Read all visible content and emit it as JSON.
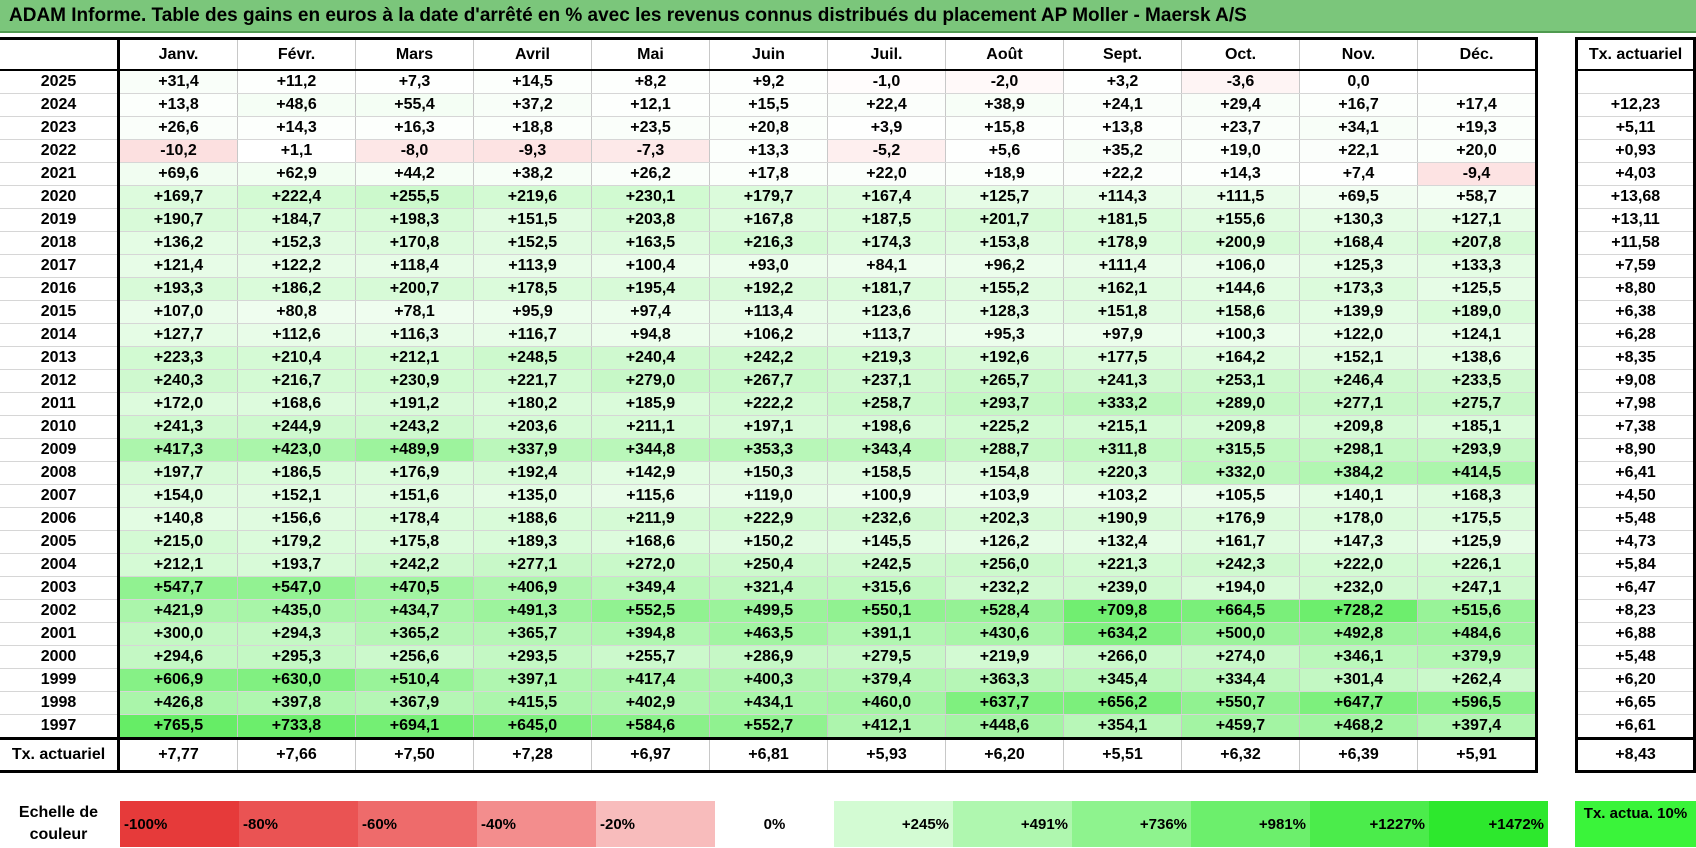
{
  "title": "ADAM Informe. Table des gains en euros à la date d'arrêté en % avec les revenus connus distribués du placement AP Moller - Maersk A/S",
  "colors": {
    "title_bar": "#7bc67b",
    "negative": "#e63a3a",
    "positive": "#2de82d",
    "target": "#3af43a"
  },
  "chart_data": {
    "type": "table",
    "months": [
      "Janv.",
      "Févr.",
      "Mars",
      "Avril",
      "Mai",
      "Juin",
      "Juil.",
      "Août",
      "Sept.",
      "Oct.",
      "Nov.",
      "Déc."
    ],
    "actuarial_header": "Tx. actuariel",
    "rows": [
      {
        "year": "2025",
        "values": [
          "+31,4",
          "+11,2",
          "+7,3",
          "+14,5",
          "+8,2",
          "+9,2",
          "-1,0",
          "-2,0",
          "+3,2",
          "-3,6",
          "0,0",
          ""
        ],
        "rate": ""
      },
      {
        "year": "2024",
        "values": [
          "+13,8",
          "+48,6",
          "+55,4",
          "+37,2",
          "+12,1",
          "+15,5",
          "+22,4",
          "+38,9",
          "+24,1",
          "+29,4",
          "+16,7",
          "+17,4"
        ],
        "rate": "+12,23"
      },
      {
        "year": "2023",
        "values": [
          "+26,6",
          "+14,3",
          "+16,3",
          "+18,8",
          "+23,5",
          "+20,8",
          "+3,9",
          "+15,8",
          "+13,8",
          "+23,7",
          "+34,1",
          "+19,3"
        ],
        "rate": "+5,11"
      },
      {
        "year": "2022",
        "values": [
          "-10,2",
          "+1,1",
          "-8,0",
          "-9,3",
          "-7,3",
          "+13,3",
          "-5,2",
          "+5,6",
          "+35,2",
          "+19,0",
          "+22,1",
          "+20,0"
        ],
        "rate": "+0,93"
      },
      {
        "year": "2021",
        "values": [
          "+69,6",
          "+62,9",
          "+44,2",
          "+38,2",
          "+26,2",
          "+17,8",
          "+22,0",
          "+18,9",
          "+22,2",
          "+14,3",
          "+7,4",
          "-9,4"
        ],
        "rate": "+4,03"
      },
      {
        "year": "2020",
        "values": [
          "+169,7",
          "+222,4",
          "+255,5",
          "+219,6",
          "+230,1",
          "+179,7",
          "+167,4",
          "+125,7",
          "+114,3",
          "+111,5",
          "+69,5",
          "+58,7"
        ],
        "rate": "+13,68"
      },
      {
        "year": "2019",
        "values": [
          "+190,7",
          "+184,7",
          "+198,3",
          "+151,5",
          "+203,8",
          "+167,8",
          "+187,5",
          "+201,7",
          "+181,5",
          "+155,6",
          "+130,3",
          "+127,1"
        ],
        "rate": "+13,11"
      },
      {
        "year": "2018",
        "values": [
          "+136,2",
          "+152,3",
          "+170,8",
          "+152,5",
          "+163,5",
          "+216,3",
          "+174,3",
          "+153,8",
          "+178,9",
          "+200,9",
          "+168,4",
          "+207,8"
        ],
        "rate": "+11,58"
      },
      {
        "year": "2017",
        "values": [
          "+121,4",
          "+122,2",
          "+118,4",
          "+113,9",
          "+100,4",
          "+93,0",
          "+84,1",
          "+96,2",
          "+111,4",
          "+106,0",
          "+125,3",
          "+133,3"
        ],
        "rate": "+7,59"
      },
      {
        "year": "2016",
        "values": [
          "+193,3",
          "+186,2",
          "+200,7",
          "+178,5",
          "+195,4",
          "+192,2",
          "+181,7",
          "+155,2",
          "+162,1",
          "+144,6",
          "+173,3",
          "+125,5"
        ],
        "rate": "+8,80"
      },
      {
        "year": "2015",
        "values": [
          "+107,0",
          "+80,8",
          "+78,1",
          "+95,9",
          "+97,4",
          "+113,4",
          "+123,6",
          "+128,3",
          "+151,8",
          "+158,6",
          "+139,9",
          "+189,0"
        ],
        "rate": "+6,38"
      },
      {
        "year": "2014",
        "values": [
          "+127,7",
          "+112,6",
          "+116,3",
          "+116,7",
          "+94,8",
          "+106,2",
          "+113,7",
          "+95,3",
          "+97,9",
          "+100,3",
          "+122,0",
          "+124,1"
        ],
        "rate": "+6,28"
      },
      {
        "year": "2013",
        "values": [
          "+223,3",
          "+210,4",
          "+212,1",
          "+248,5",
          "+240,4",
          "+242,2",
          "+219,3",
          "+192,6",
          "+177,5",
          "+164,2",
          "+152,1",
          "+138,6"
        ],
        "rate": "+8,35"
      },
      {
        "year": "2012",
        "values": [
          "+240,3",
          "+216,7",
          "+230,9",
          "+221,7",
          "+279,0",
          "+267,7",
          "+237,1",
          "+265,7",
          "+241,3",
          "+253,1",
          "+246,4",
          "+233,5"
        ],
        "rate": "+9,08"
      },
      {
        "year": "2011",
        "values": [
          "+172,0",
          "+168,6",
          "+191,2",
          "+180,2",
          "+185,9",
          "+222,2",
          "+258,7",
          "+293,7",
          "+333,2",
          "+289,0",
          "+277,1",
          "+275,7"
        ],
        "rate": "+7,98"
      },
      {
        "year": "2010",
        "values": [
          "+241,3",
          "+244,9",
          "+243,2",
          "+203,6",
          "+211,1",
          "+197,1",
          "+198,6",
          "+225,2",
          "+215,1",
          "+209,8",
          "+209,8",
          "+185,1"
        ],
        "rate": "+7,38"
      },
      {
        "year": "2009",
        "values": [
          "+417,3",
          "+423,0",
          "+489,9",
          "+337,9",
          "+344,8",
          "+353,3",
          "+343,4",
          "+288,7",
          "+311,8",
          "+315,5",
          "+298,1",
          "+293,9"
        ],
        "rate": "+8,90"
      },
      {
        "year": "2008",
        "values": [
          "+197,7",
          "+186,5",
          "+176,9",
          "+192,4",
          "+142,9",
          "+150,3",
          "+158,5",
          "+154,8",
          "+220,3",
          "+332,0",
          "+384,2",
          "+414,5"
        ],
        "rate": "+6,41"
      },
      {
        "year": "2007",
        "values": [
          "+154,0",
          "+152,1",
          "+151,6",
          "+135,0",
          "+115,6",
          "+119,0",
          "+100,9",
          "+103,9",
          "+103,2",
          "+105,5",
          "+140,1",
          "+168,3"
        ],
        "rate": "+4,50"
      },
      {
        "year": "2006",
        "values": [
          "+140,8",
          "+156,6",
          "+178,4",
          "+188,6",
          "+211,9",
          "+222,9",
          "+232,6",
          "+202,3",
          "+190,9",
          "+176,9",
          "+178,0",
          "+175,5"
        ],
        "rate": "+5,48"
      },
      {
        "year": "2005",
        "values": [
          "+215,0",
          "+179,2",
          "+175,8",
          "+189,3",
          "+168,6",
          "+150,2",
          "+145,5",
          "+126,2",
          "+132,4",
          "+161,7",
          "+147,3",
          "+125,9"
        ],
        "rate": "+4,73"
      },
      {
        "year": "2004",
        "values": [
          "+212,1",
          "+193,7",
          "+242,2",
          "+277,1",
          "+272,0",
          "+250,4",
          "+242,5",
          "+256,0",
          "+221,3",
          "+242,3",
          "+222,0",
          "+226,1"
        ],
        "rate": "+5,84"
      },
      {
        "year": "2003",
        "values": [
          "+547,7",
          "+547,0",
          "+470,5",
          "+406,9",
          "+349,4",
          "+321,4",
          "+315,6",
          "+232,2",
          "+239,0",
          "+194,0",
          "+232,0",
          "+247,1"
        ],
        "rate": "+6,47"
      },
      {
        "year": "2002",
        "values": [
          "+421,9",
          "+435,0",
          "+434,7",
          "+491,3",
          "+552,5",
          "+499,5",
          "+550,1",
          "+528,4",
          "+709,8",
          "+664,5",
          "+728,2",
          "+515,6"
        ],
        "rate": "+8,23"
      },
      {
        "year": "2001",
        "values": [
          "+300,0",
          "+294,3",
          "+365,2",
          "+365,7",
          "+394,8",
          "+463,5",
          "+391,1",
          "+430,6",
          "+634,2",
          "+500,0",
          "+492,8",
          "+484,6"
        ],
        "rate": "+6,88"
      },
      {
        "year": "2000",
        "values": [
          "+294,6",
          "+295,3",
          "+256,6",
          "+293,5",
          "+255,7",
          "+286,9",
          "+279,5",
          "+219,9",
          "+266,0",
          "+274,0",
          "+346,1",
          "+379,9"
        ],
        "rate": "+5,48"
      },
      {
        "year": "1999",
        "values": [
          "+606,9",
          "+630,0",
          "+510,4",
          "+397,1",
          "+417,4",
          "+400,3",
          "+379,4",
          "+363,3",
          "+345,4",
          "+334,4",
          "+301,4",
          "+262,4"
        ],
        "rate": "+6,20"
      },
      {
        "year": "1998",
        "values": [
          "+426,8",
          "+397,8",
          "+367,9",
          "+415,5",
          "+402,9",
          "+434,1",
          "+460,0",
          "+637,7",
          "+656,2",
          "+550,7",
          "+647,7",
          "+596,5"
        ],
        "rate": "+6,65"
      },
      {
        "year": "1997",
        "values": [
          "+765,5",
          "+733,8",
          "+694,1",
          "+645,0",
          "+584,6",
          "+552,7",
          "+412,1",
          "+448,6",
          "+354,1",
          "+459,7",
          "+468,2",
          "+397,4"
        ],
        "rate": "+6,61"
      }
    ],
    "totals": {
      "label": "Tx. actuariel",
      "values": [
        "+7,77",
        "+7,66",
        "+7,50",
        "+7,28",
        "+6,97",
        "+6,81",
        "+5,93",
        "+6,20",
        "+5,51",
        "+6,32",
        "+6,39",
        "+5,91"
      ],
      "rate": "+8,43"
    },
    "color_scale": {
      "label": "Echelle de couleur",
      "stops": [
        {
          "label": "-100%",
          "value": -100,
          "color": "#e63a3a"
        },
        {
          "label": "-80%",
          "value": -80,
          "color": "#ea5353"
        },
        {
          "label": "-60%",
          "value": -60,
          "color": "#ee6b6b"
        },
        {
          "label": "-40%",
          "value": -40,
          "color": "#f38d8d"
        },
        {
          "label": "-20%",
          "value": -20,
          "color": "#f8bcbc"
        },
        {
          "label": "0%",
          "value": 0,
          "color": "#ffffff"
        },
        {
          "label": "+245%",
          "value": 245,
          "color": "#d3fbd3"
        },
        {
          "label": "+491%",
          "value": 491,
          "color": "#aff7af"
        },
        {
          "label": "+736%",
          "value": 736,
          "color": "#8ef38e"
        },
        {
          "label": "+981%",
          "value": 981,
          "color": "#6cef6c"
        },
        {
          "label": "+1227%",
          "value": 1227,
          "color": "#4bec4b"
        },
        {
          "label": "+1472%",
          "value": 1472,
          "color": "#2de82d"
        }
      ],
      "target_label": "Tx. actua. 10%"
    }
  }
}
